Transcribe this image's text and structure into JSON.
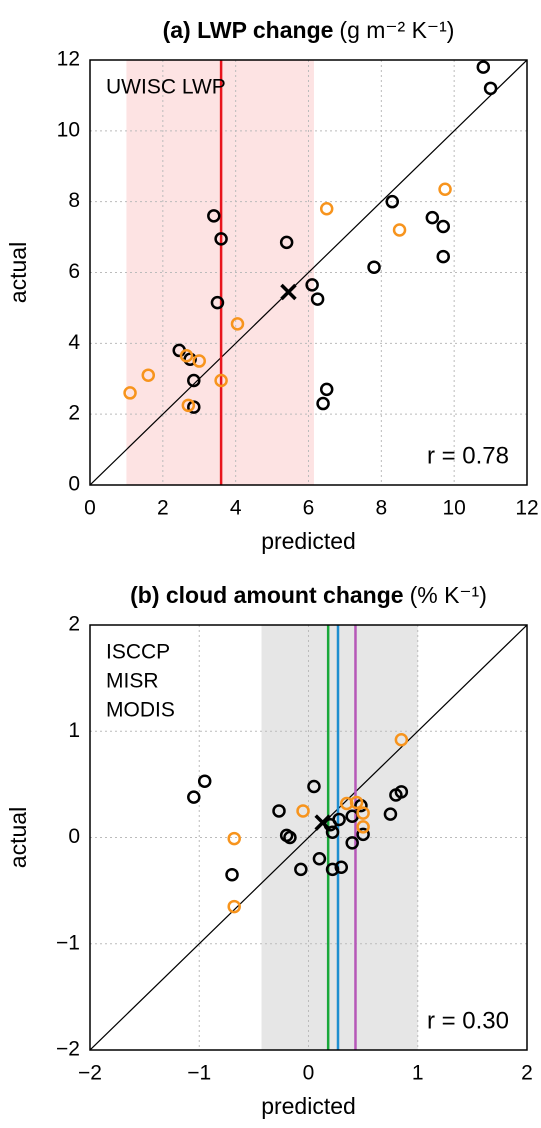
{
  "chart_data": [
    {
      "type": "scatter",
      "title": "(a) LWP change",
      "title_units": "(g m⁻² K⁻¹)",
      "xlabel": "predicted",
      "ylabel": "actual",
      "xlim": [
        0,
        12
      ],
      "ylim": [
        0,
        12
      ],
      "xticks": [
        0,
        2,
        4,
        6,
        8,
        10,
        12
      ],
      "yticks": [
        0,
        2,
        4,
        6,
        8,
        10,
        12
      ],
      "grid": true,
      "band": {
        "range": [
          1,
          6.15
        ],
        "color": "#fde3e3"
      },
      "vlines": [
        {
          "x": 3.6,
          "label": "UWISC LWP",
          "color": "#e8141c"
        }
      ],
      "annotation": "r = 0.78",
      "series": [
        {
          "color": "#000000",
          "marker": "o",
          "x": [
            10.8,
            11.0,
            8.3,
            9.4,
            9.7,
            9.7,
            7.8,
            3.4,
            3.6,
            5.4,
            6.1,
            6.25,
            3.5,
            2.45,
            2.75,
            2.85,
            2.85,
            6.4,
            6.5
          ],
          "values": [
            11.8,
            11.2,
            8.0,
            7.55,
            7.3,
            6.45,
            6.15,
            7.6,
            6.95,
            6.85,
            5.65,
            5.25,
            5.15,
            3.8,
            3.55,
            2.95,
            2.2,
            2.3,
            2.7
          ]
        },
        {
          "color": "#f7941d",
          "marker": "o",
          "x": [
            9.75,
            8.5,
            6.5,
            4.05,
            2.65,
            3.0,
            1.6,
            1.1,
            2.7,
            3.6
          ],
          "values": [
            8.35,
            7.2,
            7.8,
            4.55,
            3.65,
            3.5,
            3.1,
            2.6,
            2.25,
            2.95
          ]
        },
        {
          "color": "#000000",
          "marker": "x",
          "x": [
            5.45
          ],
          "values": [
            5.45
          ]
        }
      ]
    },
    {
      "type": "scatter",
      "title": "(b) cloud amount change",
      "title_units": "(% K⁻¹)",
      "xlabel": "predicted",
      "ylabel": "actual",
      "xlim": [
        -2,
        2
      ],
      "ylim": [
        -2,
        2
      ],
      "xticks": [
        {
          "value": -2,
          "label": "−2"
        },
        {
          "value": -1,
          "label": "−1"
        },
        0,
        1,
        2
      ],
      "yticks": [
        {
          "value": -2,
          "label": "−2"
        },
        {
          "value": -1,
          "label": "−1"
        },
        0,
        1,
        2
      ],
      "grid": true,
      "band": {
        "range": [
          -0.43,
          1.0
        ],
        "color": "#e6e6e6"
      },
      "vlines": [
        {
          "x": 0.27,
          "label": "ISCCP",
          "color": "#1f8fd0"
        },
        {
          "x": 0.18,
          "label": "MISR",
          "color": "#19a83a"
        },
        {
          "x": 0.43,
          "label": "MODIS",
          "color": "#b658b8"
        }
      ],
      "annotation": "r = 0.30",
      "series": [
        {
          "color": "#000000",
          "marker": "o",
          "x": [
            -1.05,
            -0.95,
            -0.7,
            -0.27,
            -0.2,
            -0.17,
            -0.07,
            0.05,
            0.1,
            0.2,
            0.22,
            0.22,
            0.28,
            0.3,
            0.4,
            0.4,
            0.48,
            0.5,
            0.75,
            0.8,
            0.85
          ],
          "values": [
            0.38,
            0.53,
            -0.35,
            0.25,
            0.02,
            0.0,
            -0.3,
            0.48,
            -0.2,
            0.12,
            0.05,
            -0.3,
            0.17,
            -0.28,
            0.2,
            -0.05,
            0.3,
            0.03,
            0.22,
            0.4,
            0.43
          ]
        },
        {
          "color": "#f7941d",
          "marker": "o",
          "x": [
            0.85,
            -0.68,
            -0.68,
            -0.05,
            0.35,
            0.44,
            0.5,
            0.5
          ],
          "values": [
            0.92,
            -0.01,
            -0.65,
            0.25,
            0.32,
            0.33,
            0.23,
            0.1
          ]
        },
        {
          "color": "#000000",
          "marker": "x",
          "x": [
            0.13
          ],
          "values": [
            0.14
          ]
        }
      ]
    }
  ]
}
